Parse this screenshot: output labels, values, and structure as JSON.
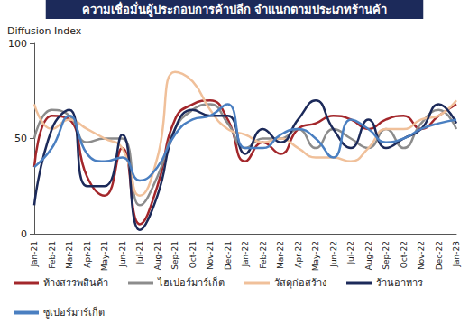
{
  "chart_data": {
    "type": "line",
    "title": "ความเชื่อมั่นผู้ประกอบการค้าปลีก จำแนกตามประเภทร้านค้า",
    "y_label": "Diffusion Index",
    "categories": [
      "Jan-21",
      "Feb-21",
      "Mar-21",
      "Apr-21",
      "May-21",
      "Jun-21",
      "Jul-21",
      "Aug-21",
      "Sep-21",
      "Oct-21",
      "Nov-21",
      "Dec-21",
      "Jan-22",
      "Feb-22",
      "Mar-22",
      "Apr-22",
      "May-22",
      "Jun-22",
      "Jul-22",
      "Aug-22",
      "Sep-22",
      "Oct-22",
      "Nov-22",
      "Dec-22",
      "Jan-23"
    ],
    "series": [
      {
        "name": "ห้างสรรพสินค้า",
        "color": "#a3272b",
        "values": [
          35,
          62,
          60,
          30,
          20,
          45,
          5,
          25,
          60,
          68,
          70,
          60,
          38,
          48,
          42,
          55,
          58,
          62,
          60,
          55,
          60,
          62,
          55,
          62,
          68
        ]
      },
      {
        "name": "ไฮเปอร์มาร์เก็ต",
        "color": "#8c8c8c",
        "values": [
          50,
          65,
          62,
          48,
          50,
          50,
          15,
          30,
          55,
          65,
          68,
          58,
          45,
          50,
          50,
          55,
          45,
          55,
          50,
          45,
          55,
          45,
          58,
          65,
          55
        ]
      },
      {
        "name": "วัสดุก่อสร้าง",
        "color": "#f0c09a",
        "values": [
          68,
          55,
          60,
          55,
          50,
          45,
          20,
          40,
          85,
          80,
          65,
          55,
          52,
          48,
          50,
          45,
          40,
          40,
          38,
          45,
          55,
          55,
          60,
          62,
          70
        ]
      },
      {
        "name": "ร้านอาหาร",
        "color": "#1c2a5a",
        "values": [
          15,
          55,
          65,
          25,
          25,
          52,
          2,
          20,
          55,
          65,
          62,
          62,
          42,
          55,
          48,
          60,
          70,
          55,
          45,
          60,
          45,
          50,
          55,
          68,
          58
        ]
      },
      {
        "name": "ซูเปอร์มาร์เก็ต",
        "color": "#4a7fc1",
        "values": [
          35,
          45,
          62,
          42,
          38,
          40,
          28,
          35,
          52,
          60,
          62,
          68,
          45,
          45,
          52,
          55,
          50,
          40,
          60,
          55,
          48,
          50,
          55,
          58,
          60
        ]
      }
    ],
    "ylim": [
      0,
      100
    ],
    "yticks": [
      0,
      50,
      100
    ],
    "grid": false,
    "legend": "bottom"
  }
}
